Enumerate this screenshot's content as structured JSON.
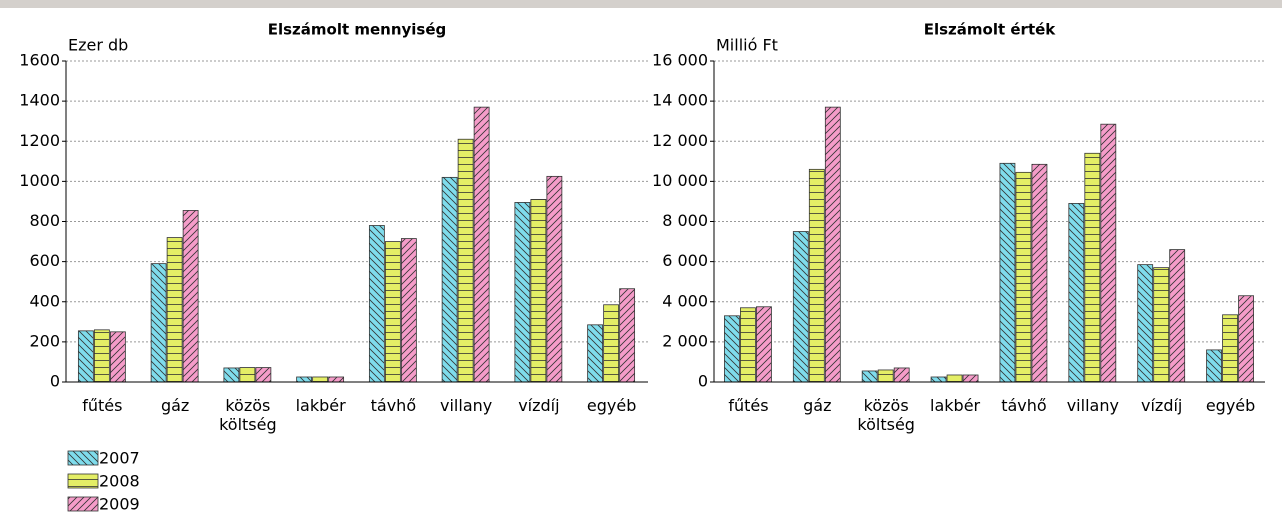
{
  "chart_data": [
    {
      "type": "bar",
      "title": "Elszámolt mennyiség",
      "y_label": "Ezer db",
      "categories": [
        "fűtés",
        "gáz",
        "közös költség",
        "lakbér",
        "távhő",
        "villany",
        "vízdíj",
        "egyéb"
      ],
      "series": [
        {
          "name": "2007",
          "color": "#7fdcec",
          "pattern": "back-diagonal",
          "values": [
            255,
            590,
            70,
            25,
            780,
            1020,
            895,
            285
          ]
        },
        {
          "name": "2008",
          "color": "#e4ee66",
          "pattern": "horizontal",
          "values": [
            260,
            720,
            72,
            25,
            700,
            1210,
            910,
            385
          ]
        },
        {
          "name": "2009",
          "color": "#f59cc9",
          "pattern": "diagonal",
          "values": [
            250,
            855,
            72,
            25,
            715,
            1370,
            1025,
            465
          ]
        }
      ],
      "ylim": [
        0,
        1600
      ],
      "yticks": [
        0,
        200,
        400,
        600,
        800,
        1000,
        1200,
        1400,
        1600
      ],
      "grid": true
    },
    {
      "type": "bar",
      "title": "Elszámolt érték",
      "y_label": "Millió Ft",
      "categories": [
        "fűtés",
        "gáz",
        "közös költség",
        "lakbér",
        "távhő",
        "villany",
        "vízdíj",
        "egyéb"
      ],
      "series": [
        {
          "name": "2007",
          "color": "#7fdcec",
          "pattern": "back-diagonal",
          "values": [
            3300,
            7500,
            550,
            250,
            10900,
            8900,
            5850,
            1600
          ]
        },
        {
          "name": "2008",
          "color": "#e4ee66",
          "pattern": "horizontal",
          "values": [
            3700,
            10600,
            600,
            350,
            10450,
            11400,
            5700,
            3350
          ]
        },
        {
          "name": "2009",
          "color": "#f59cc9",
          "pattern": "diagonal",
          "values": [
            3750,
            13700,
            700,
            350,
            10850,
            12850,
            6600,
            4300
          ]
        }
      ],
      "ylim": [
        0,
        16000
      ],
      "yticks": [
        0,
        {
          "value": 2000,
          "label": "2 000"
        },
        {
          "value": 4000,
          "label": "4 000"
        },
        {
          "value": 6000,
          "label": "6 000"
        },
        {
          "value": 8000,
          "label": "8 000"
        },
        {
          "value": 10000,
          "label": "10 000"
        },
        {
          "value": 12000,
          "label": "12 000"
        },
        {
          "value": 14000,
          "label": "14 000"
        },
        {
          "value": 16000,
          "label": "16 000"
        }
      ],
      "grid": true
    }
  ]
}
